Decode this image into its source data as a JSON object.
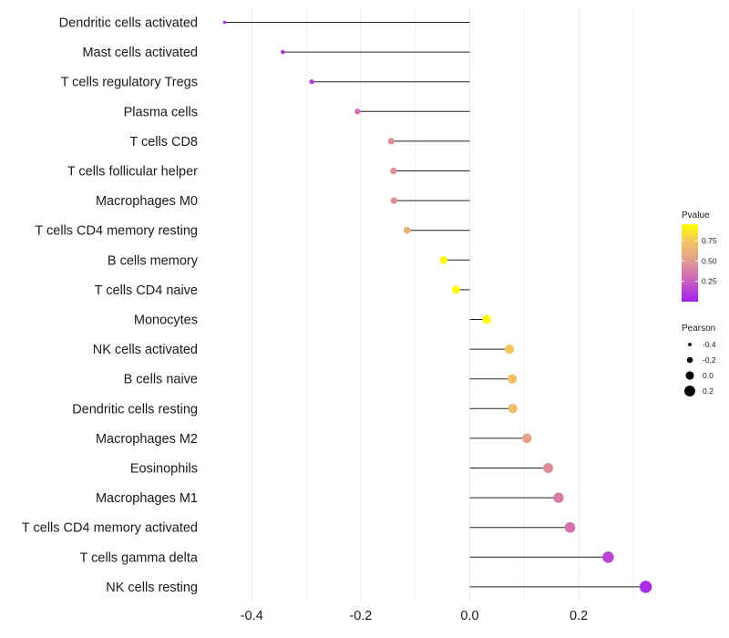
{
  "chart_data": {
    "type": "lollipop",
    "xlim": [
      -0.45,
      0.33
    ],
    "xticks": [
      -0.4,
      -0.2,
      0.0,
      0.2
    ],
    "xtick_labels": [
      "-0.4",
      "-0.2",
      "0.0",
      "0.2"
    ],
    "grid": true,
    "categories": [
      "Dendritic cells activated",
      "Mast cells activated",
      "T cells regulatory  Tregs",
      "Plasma cells",
      "T cells CD8",
      "T cells follicular helper",
      "Macrophages M0",
      "T cells CD4 memory resting",
      "B cells memory",
      "T cells CD4 naive",
      "Monocytes",
      "NK cells activated",
      "B cells naive",
      "Dendritic cells resting",
      "Macrophages M2",
      "Eosinophils",
      "Macrophages M1",
      "T cells CD4 memory activated",
      "T cells gamma delta",
      "NK cells resting"
    ],
    "pearson": [
      -0.45,
      -0.343,
      -0.29,
      -0.206,
      -0.144,
      -0.14,
      -0.139,
      -0.115,
      -0.048,
      -0.025,
      0.031,
      0.073,
      0.078,
      0.079,
      0.105,
      0.144,
      0.163,
      0.184,
      0.254,
      0.323
    ],
    "pvalue": [
      0.005,
      0.05,
      0.15,
      0.32,
      0.45,
      0.45,
      0.46,
      0.6,
      0.94,
      0.97,
      0.97,
      0.73,
      0.7,
      0.69,
      0.54,
      0.45,
      0.38,
      0.33,
      0.15,
      0.05
    ],
    "legend": {
      "pvalue": {
        "title": "Pvalue",
        "ticks": [
          0.75,
          0.5,
          0.25
        ],
        "tick_labels": [
          "0.75",
          "0.50",
          "0.25"
        ],
        "range": [
          0.0,
          0.95
        ],
        "colors": [
          "#a020f0",
          "#d06fb0",
          "#e0a28a",
          "#f5c850",
          "#ffff00"
        ]
      },
      "pearson": {
        "title": "Pearson",
        "values": [
          -0.4,
          -0.2,
          0.0,
          0.2
        ],
        "labels": [
          "-0.4",
          "-0.2",
          "0.0",
          "0.2"
        ]
      }
    }
  }
}
